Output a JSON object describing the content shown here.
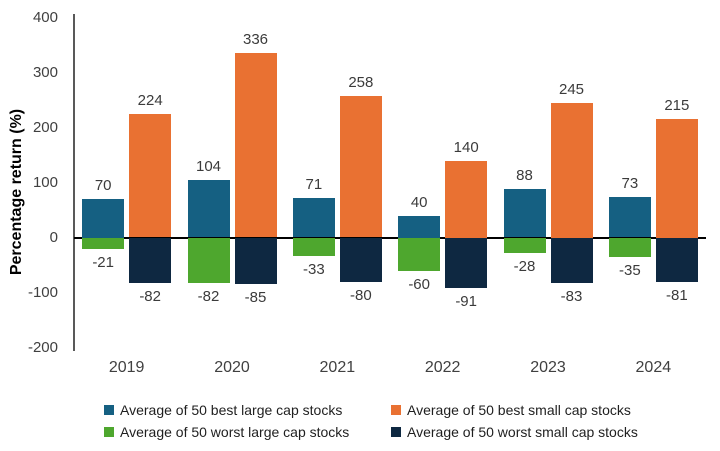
{
  "chart_data": {
    "type": "bar",
    "title": "",
    "xlabel": "",
    "ylabel": "Percentage return (%)",
    "ylim": [
      -200,
      400
    ],
    "yticks": [
      400,
      300,
      200,
      100,
      0,
      -100,
      -200
    ],
    "categories": [
      "2019",
      "2020",
      "2021",
      "2022",
      "2023",
      "2024"
    ],
    "series": [
      {
        "id": "best-large-cap",
        "name": "Average of 50 best large cap stocks",
        "color": "#156082",
        "values": [
          70,
          104,
          71,
          40,
          88,
          73
        ]
      },
      {
        "id": "best-small-cap",
        "name": "Average of 50 best small cap stocks",
        "color": "#E97132",
        "values": [
          224,
          336,
          258,
          140,
          245,
          215
        ]
      },
      {
        "id": "worst-large-cap",
        "name": "Average of 50 worst large cap stocks",
        "color": "#4EA72E",
        "values": [
          -21,
          -82,
          -33,
          -60,
          -28,
          -35
        ]
      },
      {
        "id": "worst-small-cap",
        "name": "Average of 50 worst small cap stocks",
        "color": "#0E2841",
        "values": [
          -82,
          -85,
          -80,
          -91,
          -83,
          -81
        ]
      }
    ],
    "legend_position": "bottom",
    "grid": false,
    "colors": {
      "axis_line": "#595959",
      "zero_line": "#000000",
      "data_label_text": "#3b3b3b",
      "tick_label_text": "#404040"
    }
  }
}
